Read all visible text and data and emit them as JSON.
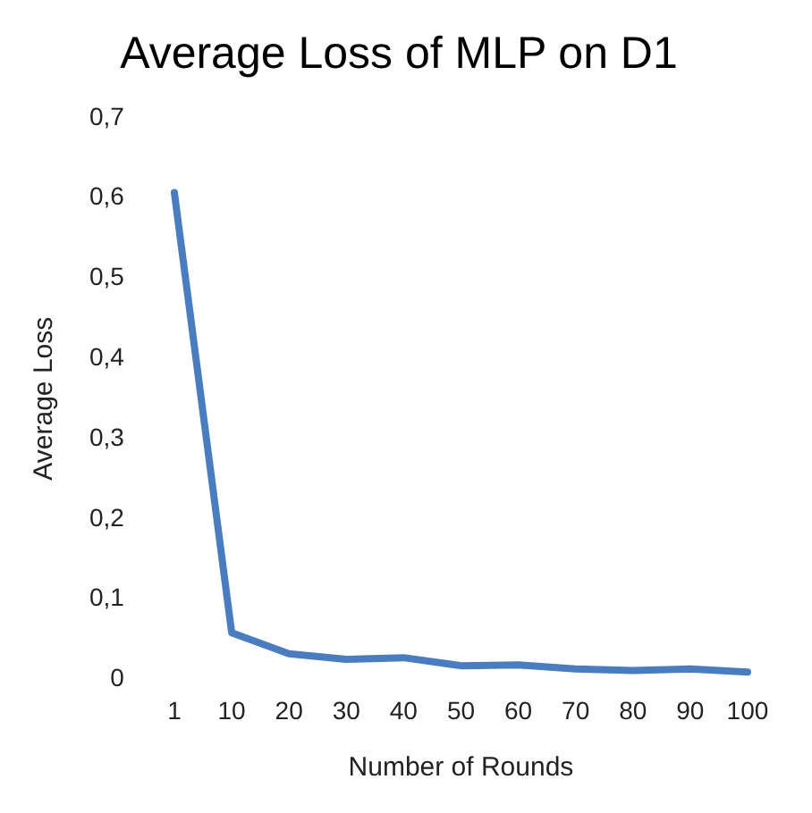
{
  "chart_data": {
    "type": "line",
    "title": "Average Loss of MLP on D1",
    "xlabel": "Number of Rounds",
    "ylabel": "Average Loss",
    "categories": [
      "1",
      "10",
      "20",
      "30",
      "40",
      "50",
      "60",
      "70",
      "80",
      "90",
      "100"
    ],
    "series": [
      {
        "color": "#4a7cc0",
        "values": [
          0.607,
          0.058,
          0.032,
          0.025,
          0.027,
          0.017,
          0.018,
          0.013,
          0.011,
          0.013,
          0.009
        ]
      }
    ],
    "ylim": [
      0,
      0.7
    ],
    "yticks": [
      0,
      {
        "value": 0.1,
        "label": "0,1"
      },
      {
        "value": 0.2,
        "label": "0,2"
      },
      {
        "value": 0.3,
        "label": "0,3"
      },
      {
        "value": 0.4,
        "label": "0,4"
      },
      {
        "value": 0.5,
        "label": "0,5"
      },
      {
        "value": 0.6,
        "label": "0,6"
      },
      {
        "value": 0.7,
        "label": "0,7"
      }
    ],
    "grid": false,
    "legend": false,
    "marker": "none",
    "line_style": "solid"
  }
}
